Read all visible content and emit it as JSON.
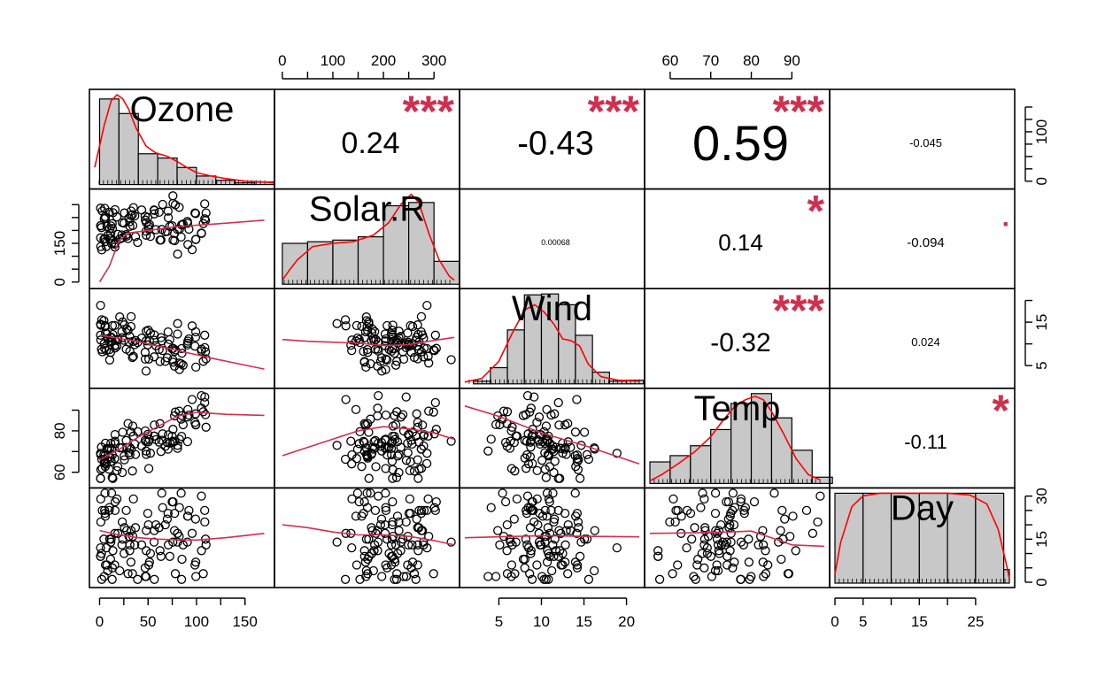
{
  "chart_data": {
    "type": "scatter-matrix",
    "variables": [
      "Ozone",
      "Solar.R",
      "Wind",
      "Temp",
      "Day"
    ],
    "colors": {
      "density": "#ff0000",
      "smooth": "#d03050",
      "stars": "#d03050",
      "bars": "#c8c8c8"
    },
    "correlations": [
      {
        "row": 0,
        "col": 1,
        "label": "0.24",
        "stars": "***",
        "font_px": 34
      },
      {
        "row": 0,
        "col": 2,
        "label": "-0.43",
        "stars": "***",
        "font_px": 38
      },
      {
        "row": 0,
        "col": 3,
        "label": "0.59",
        "stars": "***",
        "font_px": 56
      },
      {
        "row": 0,
        "col": 4,
        "label": "-0.045",
        "stars": "",
        "font_px": 13
      },
      {
        "row": 1,
        "col": 2,
        "label": "0.00068",
        "stars": "",
        "font_px": 9
      },
      {
        "row": 1,
        "col": 3,
        "label": "0.14",
        "stars": "*",
        "font_px": 26
      },
      {
        "row": 1,
        "col": 4,
        "label": "-0.094",
        "stars": ".",
        "font_px": 15
      },
      {
        "row": 2,
        "col": 3,
        "label": "-0.32",
        "stars": "***",
        "font_px": 30
      },
      {
        "row": 2,
        "col": 4,
        "label": "0.024",
        "stars": "",
        "font_px": 13
      },
      {
        "row": 3,
        "col": 4,
        "label": "-0.11",
        "stars": "*",
        "font_px": 22
      }
    ],
    "axes": {
      "Ozone": {
        "range": [
          -5,
          175
        ],
        "ticks": [
          0,
          50,
          100,
          150
        ],
        "tick_labels": [
          "0",
          "50",
          "100",
          "150"
        ],
        "side": "bottom",
        "vticks": [
          0,
          100
        ],
        "vtick_labels": [
          "0",
          "100"
        ],
        "minor": [
          25,
          50,
          75,
          125,
          150
        ],
        "vside": "right"
      },
      "Solar.R": {
        "range": [
          -5,
          340
        ],
        "ticks": [
          0,
          100,
          200,
          300
        ],
        "tick_labels": [
          "0",
          "100",
          "200",
          "300"
        ],
        "side": "top",
        "minor": [
          50,
          150,
          250
        ],
        "vticks": [
          0,
          150
        ],
        "vtick_labels": [
          "0",
          "150"
        ],
        "vminor": [
          50,
          100,
          200,
          250,
          300
        ],
        "vside": "left"
      },
      "Wind": {
        "range": [
          1,
          21.5
        ],
        "ticks": [
          5,
          10,
          15,
          20
        ],
        "tick_labels": [
          "5",
          "10",
          "15",
          "20"
        ],
        "side": "bottom",
        "vticks": [
          5,
          15
        ],
        "vtick_labels": [
          "5",
          "15"
        ],
        "vminor": [
          10,
          20
        ],
        "vside": "right"
      },
      "Temp": {
        "range": [
          55,
          98
        ],
        "ticks": [
          60,
          70,
          80,
          90
        ],
        "tick_labels": [
          "60",
          "70",
          "80",
          "90"
        ],
        "side": "top",
        "vticks": [
          60,
          80
        ],
        "vtick_labels": [
          "60",
          "80"
        ],
        "vminor": [
          70,
          90
        ],
        "vside": "left"
      },
      "Day": {
        "range": [
          0,
          31
        ],
        "ticks": [
          0,
          5,
          15,
          25
        ],
        "tick_labels": [
          "0",
          "5",
          "15",
          "25"
        ],
        "minor": [
          10,
          20
        ],
        "side": "bottom",
        "vticks": [
          0,
          15,
          30
        ],
        "vtick_labels": [
          "0",
          "15",
          "30"
        ],
        "vminor": [
          5,
          10,
          20,
          25
        ],
        "vside": "right"
      }
    },
    "histograms": {
      "Ozone": {
        "breaks": [
          0,
          20,
          40,
          60,
          80,
          100,
          120,
          140,
          160,
          180
        ],
        "heights": [
          1.0,
          0.83,
          0.36,
          0.31,
          0.2,
          0.1,
          0.05,
          0.02,
          0.03
        ],
        "density_x": [
          -5,
          5,
          12,
          18,
          24,
          30,
          38,
          48,
          58,
          70,
          80,
          90,
          100,
          115,
          130,
          150,
          170,
          180
        ],
        "density_y": [
          0.2,
          0.7,
          0.98,
          1.05,
          1.0,
          0.88,
          0.65,
          0.45,
          0.37,
          0.33,
          0.27,
          0.2,
          0.14,
          0.1,
          0.07,
          0.04,
          0.03,
          0.02
        ]
      },
      "Solar.R": {
        "breaks": [
          0,
          50,
          100,
          150,
          200,
          250,
          300,
          350
        ],
        "heights": [
          0.5,
          0.52,
          0.54,
          0.58,
          0.96,
          1.0,
          0.28
        ],
        "density_x": [
          0,
          15,
          30,
          60,
          100,
          140,
          180,
          210,
          235,
          255,
          270,
          290,
          310,
          330,
          340
        ],
        "density_y": [
          0.05,
          0.18,
          0.3,
          0.46,
          0.5,
          0.52,
          0.6,
          0.75,
          0.98,
          1.1,
          1.0,
          0.62,
          0.3,
          0.1,
          0.05
        ]
      },
      "Wind": {
        "breaks": [
          2,
          4,
          6,
          8,
          10,
          12,
          14,
          16,
          18,
          20,
          22
        ],
        "heights": [
          0.03,
          0.18,
          0.6,
          0.99,
          1.0,
          0.88,
          0.54,
          0.13,
          0.03,
          0.04
        ],
        "density_x": [
          1,
          3,
          5,
          6.5,
          8,
          9.2,
          10.3,
          11.5,
          12.5,
          13.5,
          14.5,
          15.5,
          17,
          19,
          21.5
        ],
        "density_y": [
          0.02,
          0.06,
          0.25,
          0.55,
          0.82,
          0.88,
          0.8,
          0.66,
          0.5,
          0.48,
          0.42,
          0.22,
          0.08,
          0.04,
          0.03
        ]
      },
      "Temp": {
        "breaks": [
          55,
          60,
          65,
          70,
          75,
          80,
          85,
          90,
          95,
          100
        ],
        "heights": [
          0.24,
          0.31,
          0.42,
          0.6,
          0.89,
          1.0,
          0.73,
          0.37,
          0.07
        ],
        "density_x": [
          55,
          58,
          62,
          66,
          70,
          73,
          76,
          78.5,
          81,
          83,
          85,
          88,
          91,
          94,
          97
        ],
        "density_y": [
          0.03,
          0.1,
          0.22,
          0.35,
          0.52,
          0.7,
          0.86,
          0.93,
          0.97,
          0.93,
          0.8,
          0.55,
          0.28,
          0.1,
          0.04
        ]
      },
      "Day": {
        "breaks": [
          0,
          5,
          10,
          15,
          20,
          25,
          30
        ],
        "heights": [
          1.0,
          1.0,
          1.0,
          1.0,
          1.0,
          1.0
        ],
        "extra_bar": {
          "x0": 30,
          "x1": 31,
          "height": 0.15
        },
        "density_x": [
          0,
          1,
          3,
          5,
          8,
          12,
          16,
          20,
          24,
          27,
          29,
          30.5,
          31
        ],
        "density_y": [
          0.1,
          0.45,
          0.85,
          0.97,
          1.0,
          1.0,
          1.0,
          1.0,
          0.98,
          0.88,
          0.6,
          0.2,
          0.05
        ]
      }
    },
    "smooths": {
      "0,1": {
        "x": [
          0,
          10,
          20,
          30,
          50,
          80,
          120,
          170
        ],
        "y": [
          0,
          60,
          160,
          190,
          200,
          215,
          225,
          240
        ]
      },
      "0,2": {
        "x": [
          0,
          40,
          80,
          120,
          170
        ],
        "y": [
          12.0,
          10.5,
          8.5,
          6.5,
          4.2
        ]
      },
      "0,3": {
        "x": [
          0,
          20,
          40,
          60,
          80,
          100,
          130,
          170
        ],
        "y": [
          66,
          71,
          77,
          82,
          87,
          89,
          88,
          87.5
        ]
      },
      "0,4": {
        "x": [
          0,
          20,
          40,
          60,
          80,
          100,
          130,
          170
        ],
        "y": [
          18,
          16.5,
          15.5,
          15,
          14.8,
          14.7,
          15.5,
          17
        ]
      },
      "1,2": {
        "x": [
          0,
          50,
          100,
          150,
          200,
          250,
          300,
          340
        ],
        "y": [
          11.0,
          10.6,
          10.4,
          10.2,
          9.6,
          9.8,
          10.8,
          11.5
        ]
      },
      "1,3": {
        "x": [
          0,
          50,
          100,
          150,
          200,
          250,
          300,
          340
        ],
        "y": [
          68,
          72,
          76,
          80,
          82,
          81,
          79,
          76
        ]
      },
      "1,4": {
        "x": [
          0,
          50,
          100,
          150,
          200,
          250,
          300,
          340
        ],
        "y": [
          20,
          19,
          17.5,
          16.5,
          16.5,
          16,
          14.5,
          13
        ]
      },
      "2,3": {
        "x": [
          1,
          5,
          10,
          15,
          21.5
        ],
        "y": [
          92,
          87,
          79,
          73,
          64
        ]
      },
      "2,4": {
        "x": [
          1,
          5,
          10,
          15,
          21.5
        ],
        "y": [
          15.5,
          15.8,
          16.2,
          16,
          15.8
        ]
      },
      "3,4": {
        "x": [
          55,
          65,
          75,
          80,
          85,
          90,
          98
        ],
        "y": [
          17,
          17.2,
          17.5,
          17.8,
          15.5,
          13,
          12.5
        ]
      }
    }
  }
}
